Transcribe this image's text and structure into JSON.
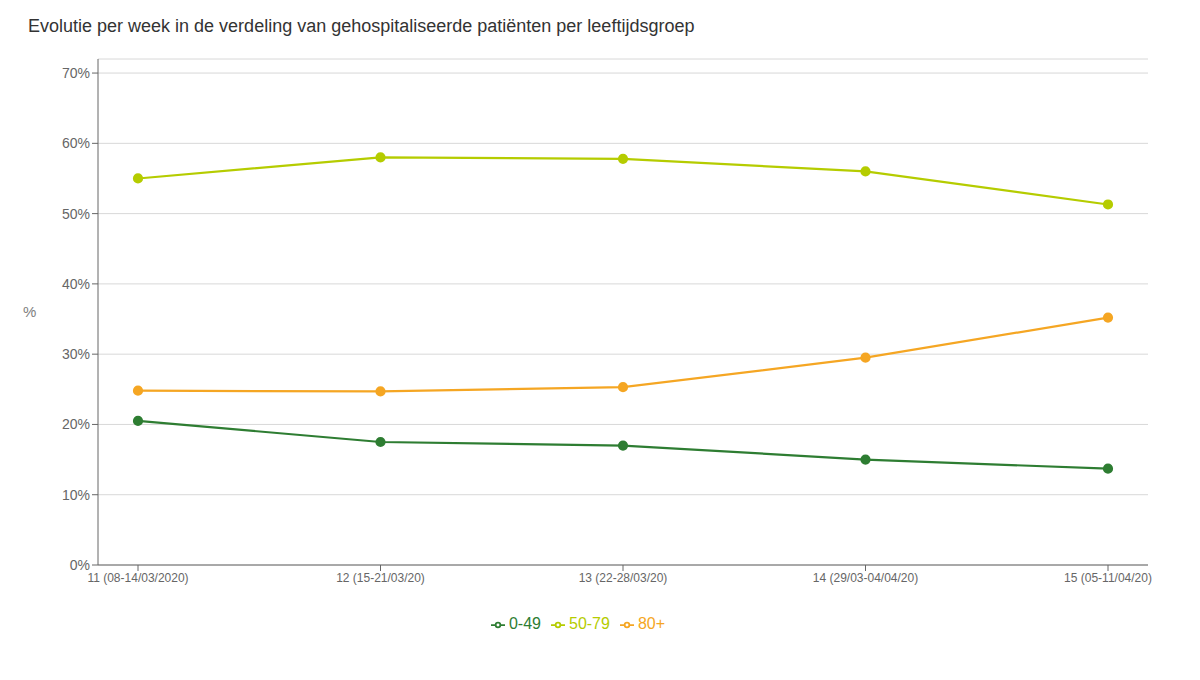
{
  "chart_data": {
    "type": "line",
    "title": "Evolutie per week in de verdeling van gehospitaliseerde patiënten per leeftijdsgroep",
    "y_label": "%",
    "categories": [
      "11 (08-14/03/2020)",
      "12 (15-21/03/20)",
      "13 (22-28/03/20)",
      "14 (29/03-04/04/20)",
      "15 (05-11/04/20)"
    ],
    "series": [
      {
        "name": "0-49",
        "color": "#2e7d32",
        "marker": "circle",
        "values": [
          0.205,
          0.175,
          0.17,
          0.15,
          0.137
        ]
      },
      {
        "name": "50-79",
        "color": "#b5cc00",
        "marker": "circle",
        "values": [
          0.55,
          0.58,
          0.578,
          0.56,
          0.513
        ]
      },
      {
        "name": "80+",
        "color": "#f5a623",
        "marker": "circle",
        "values": [
          0.248,
          0.247,
          0.253,
          0.295,
          0.352
        ]
      }
    ],
    "ylim": [
      0,
      0.72
    ],
    "yticks": [
      {
        "value": 0,
        "label": "0%"
      },
      {
        "value": 0.1,
        "label": "10%"
      },
      {
        "value": 0.2,
        "label": "20%"
      },
      {
        "value": 0.3,
        "label": "30%"
      },
      {
        "value": 0.4,
        "label": "40%"
      },
      {
        "value": 0.5,
        "label": "50%"
      },
      {
        "value": 0.6,
        "label": "60%"
      },
      {
        "value": 0.7,
        "label": "70%"
      }
    ],
    "grid": true,
    "legend": "bottom"
  }
}
